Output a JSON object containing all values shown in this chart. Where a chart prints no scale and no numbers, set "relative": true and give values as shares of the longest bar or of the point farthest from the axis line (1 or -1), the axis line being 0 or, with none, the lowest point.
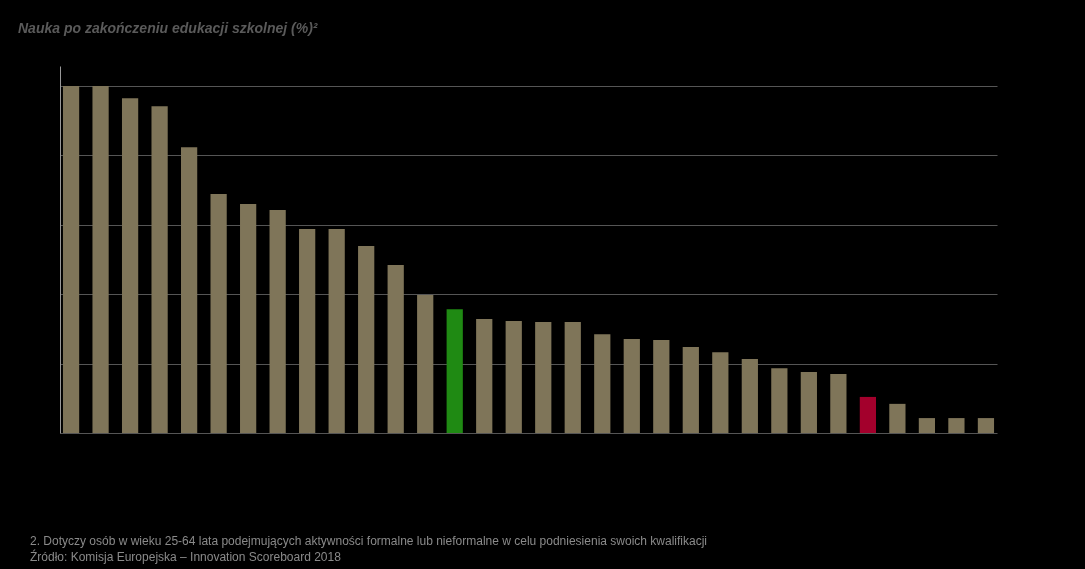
{
  "chart_data": {
    "type": "bar",
    "title": "Nauka po zakończeniu edukacji szkolnej (%)²",
    "relative": true,
    "grid": "y",
    "categories": [
      null,
      null,
      null,
      null,
      null,
      null,
      null,
      null,
      null,
      null,
      null,
      null,
      null,
      null,
      null,
      null,
      null,
      null,
      null,
      null,
      null,
      null,
      null,
      null,
      null,
      null,
      null,
      null,
      null,
      null,
      null,
      null
    ],
    "values": [
      1,
      1,
      0.965,
      0.942,
      0.824,
      0.689,
      0.66,
      0.643,
      0.588,
      0.588,
      0.539,
      0.484,
      0.398,
      0.357,
      0.329,
      0.323,
      0.32,
      0.32,
      0.285,
      0.271,
      0.268,
      0.248,
      0.233,
      0.213,
      0.187,
      0.176,
      0.17,
      0.104,
      0.084,
      0.043,
      0.043,
      0.043
    ],
    "colors": [
      "#7f7559",
      "#7f7559",
      "#7f7559",
      "#7f7559",
      "#7f7559",
      "#7f7559",
      "#7f7559",
      "#7f7559",
      "#7f7559",
      "#7f7559",
      "#7f7559",
      "#7f7559",
      "#7f7559",
      "#1f8a13",
      "#7f7559",
      "#7f7559",
      "#7f7559",
      "#7f7559",
      "#7f7559",
      "#7f7559",
      "#7f7559",
      "#7f7559",
      "#7f7559",
      "#7f7559",
      "#7f7559",
      "#7f7559",
      "#7f7559",
      "#a3002c",
      "#7f7559",
      "#7f7559",
      "#7f7559",
      "#7f7559"
    ],
    "annotations": [
      "2. Dotyczy osób w wieku 25-64 lata podejmujących aktywności formalne lub nieformalne w celu podniesienia swoich kwalifikacji",
      "Źródło: Komisja Europejska – Innovation Scoreboard 2018"
    ]
  }
}
